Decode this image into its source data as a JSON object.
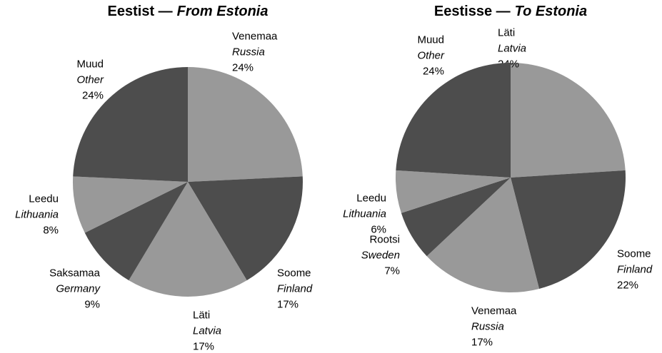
{
  "chart_data": [
    {
      "type": "pie",
      "title": "Eestist —",
      "title_italic": "From Estonia",
      "categories": [
        "Venemaa",
        "Soome",
        "Läti",
        "Saksamaa",
        "Leedu",
        "Muud"
      ],
      "categories_en": [
        "Russia",
        "Finland",
        "Latvia",
        "Germany",
        "Lithuania",
        "Other"
      ],
      "values": [
        24,
        17,
        17,
        9,
        8,
        24
      ],
      "value_labels": [
        "24%",
        "17%",
        "17%",
        "9%",
        "8%",
        "24%"
      ],
      "colors": [
        "#999999",
        "#4d4d4d",
        "#999999",
        "#4d4d4d",
        "#999999",
        "#4d4d4d"
      ]
    },
    {
      "type": "pie",
      "title": "Eestisse —",
      "title_italic": "To Estonia",
      "categories": [
        "Läti",
        "Soome",
        "Venemaa",
        "Rootsi",
        "Leedu",
        "Muud"
      ],
      "categories_en": [
        "Latvia",
        "Finland",
        "Russia",
        "Sweden",
        "Lithuania",
        "Other"
      ],
      "values": [
        24,
        22,
        17,
        7,
        6,
        24
      ],
      "value_labels": [
        "24%",
        "22%",
        "17%",
        "7%",
        "6%",
        "24%"
      ],
      "colors": [
        "#999999",
        "#4d4d4d",
        "#999999",
        "#4d4d4d",
        "#999999",
        "#4d4d4d"
      ]
    }
  ]
}
